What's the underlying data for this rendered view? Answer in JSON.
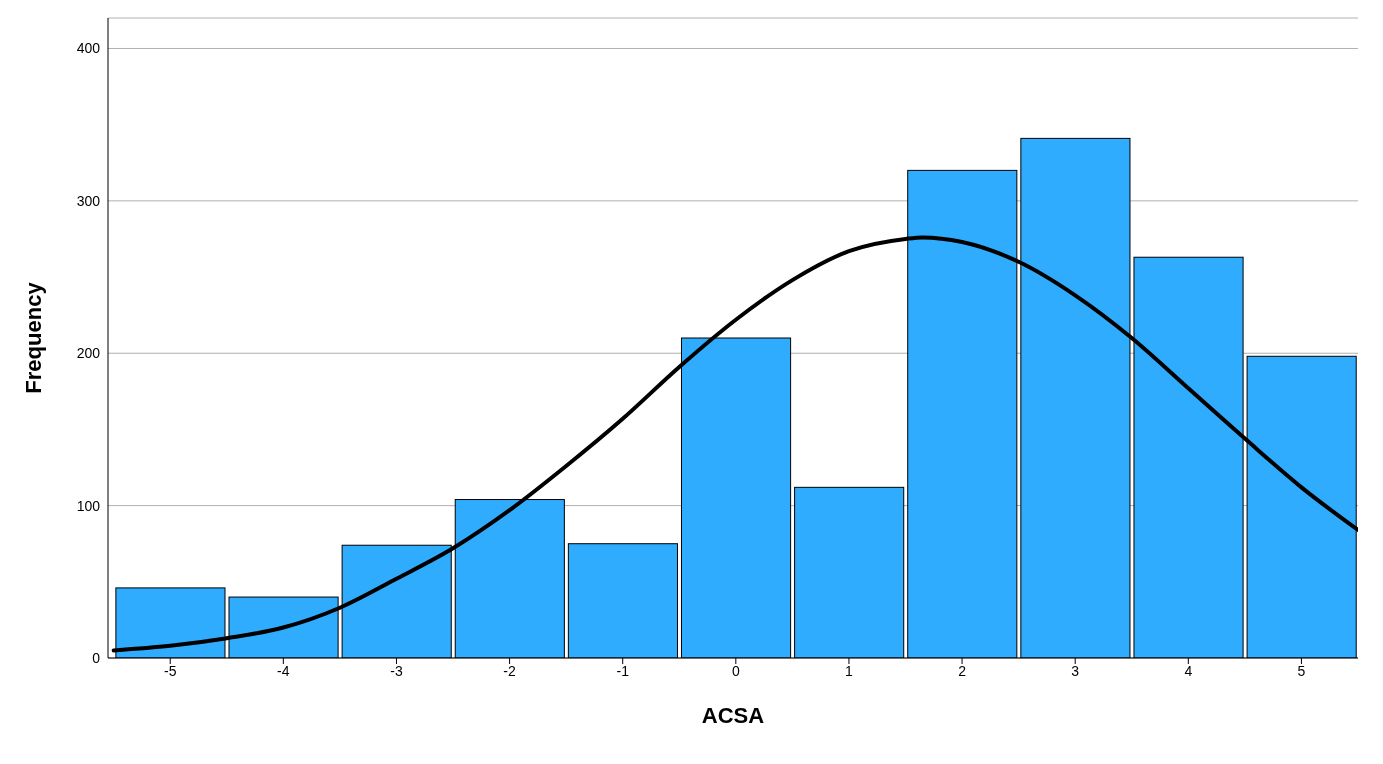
{
  "chart_data": {
    "type": "histogram",
    "xlabel": "ACSA",
    "ylabel": "Frequency",
    "bins": [
      -5.5,
      -4.5,
      -3.5,
      -2.5,
      -1.5,
      -0.5,
      0.5,
      1.5,
      2.5,
      3.5,
      4.5,
      5.5
    ],
    "xlim": [
      -5.55,
      5.5
    ],
    "xticks": [
      -5,
      -4,
      -3,
      -2,
      -1,
      0,
      1,
      2,
      3,
      4,
      5
    ],
    "ylim": [
      0,
      420
    ],
    "yticks": [
      0,
      100,
      200,
      300,
      400
    ],
    "grid": "y",
    "series": [
      {
        "type": "histogram",
        "color": "#30acfe",
        "values": [
          46,
          40,
          74,
          104,
          75,
          210,
          112,
          320,
          341,
          263,
          198
        ]
      },
      {
        "type": "line",
        "color": "#000000",
        "marker": "none",
        "line_style": "solid",
        "x": [
          -5.5,
          -5,
          -4.5,
          -4,
          -3.5,
          -3,
          -2.5,
          -2,
          -1.5,
          -1,
          -0.5,
          0,
          0.5,
          1,
          1.5,
          1.65,
          2,
          2.5,
          3,
          3.5,
          4,
          4.5,
          5,
          5.5
        ],
        "values": [
          5,
          8,
          13,
          20,
          33,
          52,
          72,
          97,
          126,
          157,
          191,
          222,
          248,
          267,
          275,
          276,
          273,
          260,
          238,
          210,
          177,
          144,
          112,
          84
        ]
      }
    ]
  }
}
